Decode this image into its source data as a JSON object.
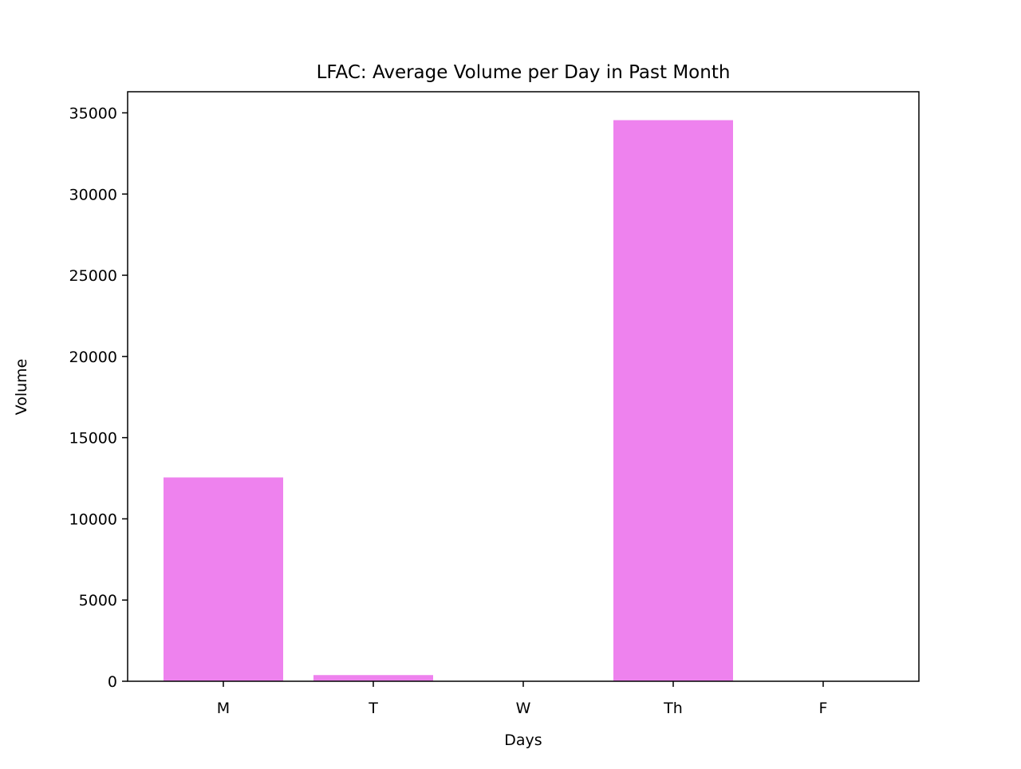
{
  "chart_data": {
    "type": "bar",
    "title": "LFAC: Average Volume per Day in Past Month",
    "xlabel": "Days",
    "ylabel": "Volume",
    "categories": [
      "M",
      "T",
      "W",
      "Th",
      "F"
    ],
    "values": [
      12550,
      380,
      0,
      34550,
      0
    ],
    "ylim": [
      0,
      36300
    ],
    "yticks": [
      0,
      5000,
      10000,
      15000,
      20000,
      25000,
      30000,
      35000
    ],
    "ytick_labels": [
      "0",
      "5000",
      "10000",
      "15000",
      "20000",
      "25000",
      "30000",
      "35000"
    ],
    "bar_color": "#ee82ee",
    "grid": false,
    "legend": "none"
  }
}
